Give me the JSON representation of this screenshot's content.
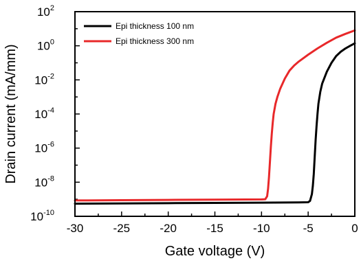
{
  "chart_data": {
    "type": "line",
    "title": "",
    "xlabel": "Gate voltage (V)",
    "ylabel": "Drain current (mA/mm)",
    "x_scale": "linear",
    "y_scale": "log",
    "xlim": [
      -30,
      0
    ],
    "ylim": [
      1e-10,
      100
    ],
    "x_ticks": [
      "-30",
      "-25",
      "-20",
      "-15",
      "-10",
      "-5",
      "0"
    ],
    "y_tick_mantissa": "10",
    "y_tick_exponents": [
      "-10",
      "-8",
      "-6",
      "-4",
      "-2",
      "0",
      "2"
    ],
    "grid": false,
    "legend_position": "top-left",
    "series": [
      {
        "name": "Epi thickness 100 nm",
        "color": "#000000",
        "points": [
          [
            -30,
            5.5e-10
          ],
          [
            -25,
            5.7e-10
          ],
          [
            -20,
            5.9e-10
          ],
          [
            -15,
            6.1e-10
          ],
          [
            -10,
            6.3e-10
          ],
          [
            -6,
            6.5e-10
          ],
          [
            -5,
            6.7e-10
          ],
          [
            -4.8,
            8e-10
          ],
          [
            -4.6,
            2e-09
          ],
          [
            -4.5,
            6e-09
          ],
          [
            -4.4,
            3e-08
          ],
          [
            -4.3,
            3e-07
          ],
          [
            -4.2,
            3e-06
          ],
          [
            -4.1,
            2e-05
          ],
          [
            -4.0,
            0.0001
          ],
          [
            -3.9,
            0.0004
          ],
          [
            -3.7,
            0.002
          ],
          [
            -3.5,
            0.006
          ],
          [
            -3.0,
            0.03
          ],
          [
            -2.5,
            0.1
          ],
          [
            -2.0,
            0.25
          ],
          [
            -1.5,
            0.45
          ],
          [
            -1.0,
            0.7
          ],
          [
            -0.5,
            1.0
          ],
          [
            0,
            1.4
          ]
        ]
      },
      {
        "name": "Epi thickness 300 nm",
        "color": "#e8282a",
        "points": [
          [
            -30,
            8.5e-10
          ],
          [
            -25,
            8.8e-10
          ],
          [
            -20,
            9.2e-10
          ],
          [
            -15,
            9.5e-10
          ],
          [
            -10,
            9.8e-10
          ],
          [
            -9.6,
            1e-09
          ],
          [
            -9.4,
            1.5e-09
          ],
          [
            -9.3,
            4e-09
          ],
          [
            -9.2,
            2e-08
          ],
          [
            -9.1,
            1.5e-07
          ],
          [
            -9.0,
            1.2e-06
          ],
          [
            -8.9,
            7e-06
          ],
          [
            -8.8,
            3e-05
          ],
          [
            -8.7,
            0.0001
          ],
          [
            -8.5,
            0.0004
          ],
          [
            -8.3,
            0.001
          ],
          [
            -8.0,
            0.003
          ],
          [
            -7.5,
            0.012
          ],
          [
            -7.0,
            0.035
          ],
          [
            -6.5,
            0.07
          ],
          [
            -6.0,
            0.12
          ],
          [
            -5.0,
            0.3
          ],
          [
            -4.0,
            0.7
          ],
          [
            -3.0,
            1.5
          ],
          [
            -2.0,
            3.0
          ],
          [
            -1.0,
            5.0
          ],
          [
            0,
            8.0
          ]
        ]
      }
    ]
  }
}
